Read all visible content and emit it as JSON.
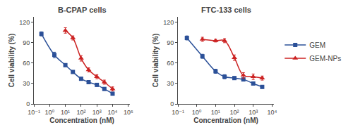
{
  "chart_data": [
    {
      "type": "scatter",
      "title": "B-CPAP cells",
      "x_label": "Concentration (nM)",
      "y_label": "Cell viability (%)",
      "log": "x",
      "grid": false,
      "xlim": [
        0.1,
        125892.5
      ],
      "xticks": [
        {
          "value": 0.1,
          "label": "10⁻¹"
        },
        {
          "value": 1,
          "label": "10⁰"
        },
        {
          "value": 10,
          "label": "10¹"
        },
        {
          "value": 100,
          "label": "10²"
        },
        {
          "value": 1000,
          "label": "10³"
        },
        {
          "value": 10000,
          "label": "10⁴"
        },
        {
          "value": 100000,
          "label": "10⁵"
        }
      ],
      "ylim": [
        0,
        128
      ],
      "yticks": [
        0,
        30,
        60,
        90,
        120
      ],
      "series": [
        {
          "name": "GEM",
          "color": "#2B5098",
          "marker": "square",
          "line_style": "solid",
          "x": [
            0.3,
            2,
            10,
            30,
            100,
            300,
            1000,
            3000,
            10000
          ],
          "values": [
            103,
            72,
            57,
            47,
            37,
            32,
            28,
            22,
            15
          ],
          "errors": [
            3,
            4,
            2,
            2,
            2,
            2,
            2,
            2,
            2
          ]
        },
        {
          "name": "GEM-NPs",
          "color": "#CC2222",
          "marker": "triangle-up",
          "line_style": "solid",
          "x": [
            10,
            30,
            100,
            300,
            1000,
            3000,
            10000
          ],
          "values": [
            108,
            97,
            67,
            50,
            40,
            32,
            22
          ],
          "errors": [
            4,
            3,
            4,
            3,
            3,
            3,
            3
          ]
        }
      ]
    },
    {
      "type": "scatter",
      "title": "FTC-133 cells",
      "x_label": "Concentration (nM)",
      "y_label": "Cell viability (%)",
      "log": "x",
      "grid": false,
      "legend": "right",
      "xlim": [
        0.1,
        12589.25
      ],
      "xticks": [
        {
          "value": 0.1,
          "label": "10⁻¹"
        },
        {
          "value": 1,
          "label": "10⁰"
        },
        {
          "value": 10,
          "label": "10¹"
        },
        {
          "value": 100,
          "label": "10²"
        },
        {
          "value": 1000,
          "label": "10³"
        },
        {
          "value": 10000,
          "label": "10⁴"
        }
      ],
      "ylim": [
        0,
        128
      ],
      "yticks": [
        0,
        30,
        60,
        90,
        120
      ],
      "series": [
        {
          "name": "GEM",
          "color": "#2B5098",
          "marker": "square",
          "line_style": "solid",
          "x": [
            0.3,
            2,
            10,
            30,
            100,
            300,
            1000,
            3000
          ],
          "values": [
            97,
            70,
            48,
            40,
            38,
            36,
            30,
            25
          ],
          "errors": [
            3,
            3,
            3,
            3,
            2,
            2,
            2,
            2
          ]
        },
        {
          "name": "GEM-NPs",
          "color": "#CC2222",
          "marker": "triangle-up",
          "line_style": "solid",
          "x": [
            2,
            10,
            30,
            100,
            300,
            1000,
            3000
          ],
          "values": [
            95,
            93,
            93,
            68,
            42,
            40,
            38
          ],
          "errors": [
            3,
            2,
            3,
            4,
            4,
            4,
            3
          ]
        }
      ]
    }
  ]
}
